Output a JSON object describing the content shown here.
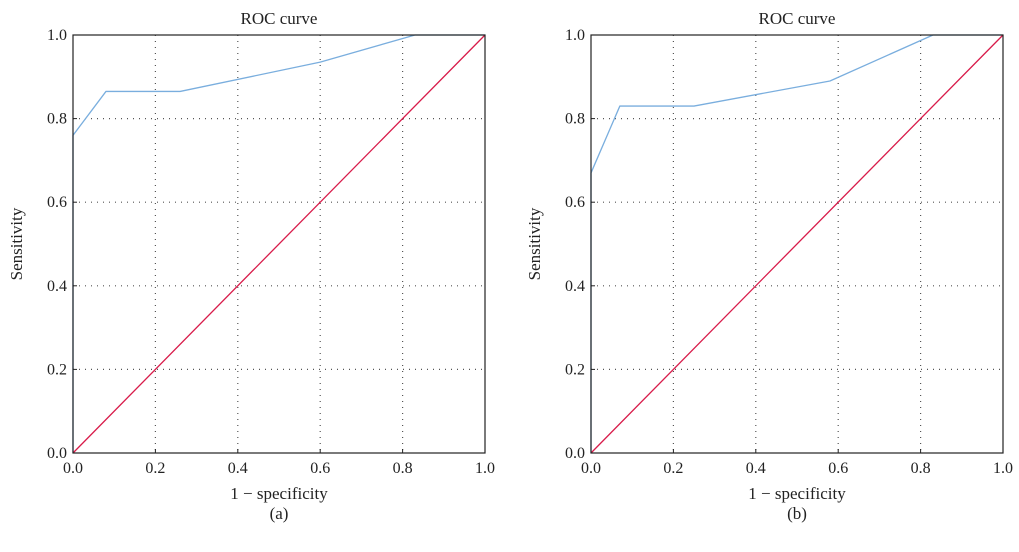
{
  "chart_data": [
    {
      "type": "line",
      "title": "ROC curve",
      "xlabel": "1 − specificity",
      "ylabel": "Sensitivity",
      "caption": "(a)",
      "xlim": [
        0,
        1
      ],
      "ylim": [
        0,
        1
      ],
      "xticks": [
        "0.0",
        "0.2",
        "0.4",
        "0.6",
        "0.8",
        "1.0"
      ],
      "yticks": [
        "0.0",
        "0.2",
        "0.4",
        "0.6",
        "0.8",
        "1.0"
      ],
      "grid": true,
      "series": [
        {
          "color": "#7aaede",
          "points": [
            [
              0,
              0
            ],
            [
              0,
              0.76
            ],
            [
              0.08,
              0.865
            ],
            [
              0.26,
              0.865
            ],
            [
              0.6,
              0.935
            ],
            [
              0.83,
              1.0
            ],
            [
              1.0,
              1.0
            ]
          ]
        },
        {
          "color": "#d81b4a",
          "points": [
            [
              0,
              0
            ],
            [
              1,
              1
            ]
          ]
        }
      ]
    },
    {
      "type": "line",
      "title": "ROC curve",
      "xlabel": "1 − specificity",
      "ylabel": "Sensitivity",
      "caption": "(b)",
      "xlim": [
        0,
        1
      ],
      "ylim": [
        0,
        1
      ],
      "xticks": [
        "0.0",
        "0.2",
        "0.4",
        "0.6",
        "0.8",
        "1.0"
      ],
      "yticks": [
        "0.0",
        "0.2",
        "0.4",
        "0.6",
        "0.8",
        "1.0"
      ],
      "grid": true,
      "series": [
        {
          "color": "#7aaede",
          "points": [
            [
              0,
              0
            ],
            [
              0,
              0.67
            ],
            [
              0.07,
              0.83
            ],
            [
              0.25,
              0.83
            ],
            [
              0.58,
              0.89
            ],
            [
              0.83,
              1.0
            ],
            [
              1.0,
              1.0
            ]
          ]
        },
        {
          "color": "#d81b4a",
          "points": [
            [
              0,
              0
            ],
            [
              1,
              1
            ]
          ]
        }
      ]
    }
  ]
}
